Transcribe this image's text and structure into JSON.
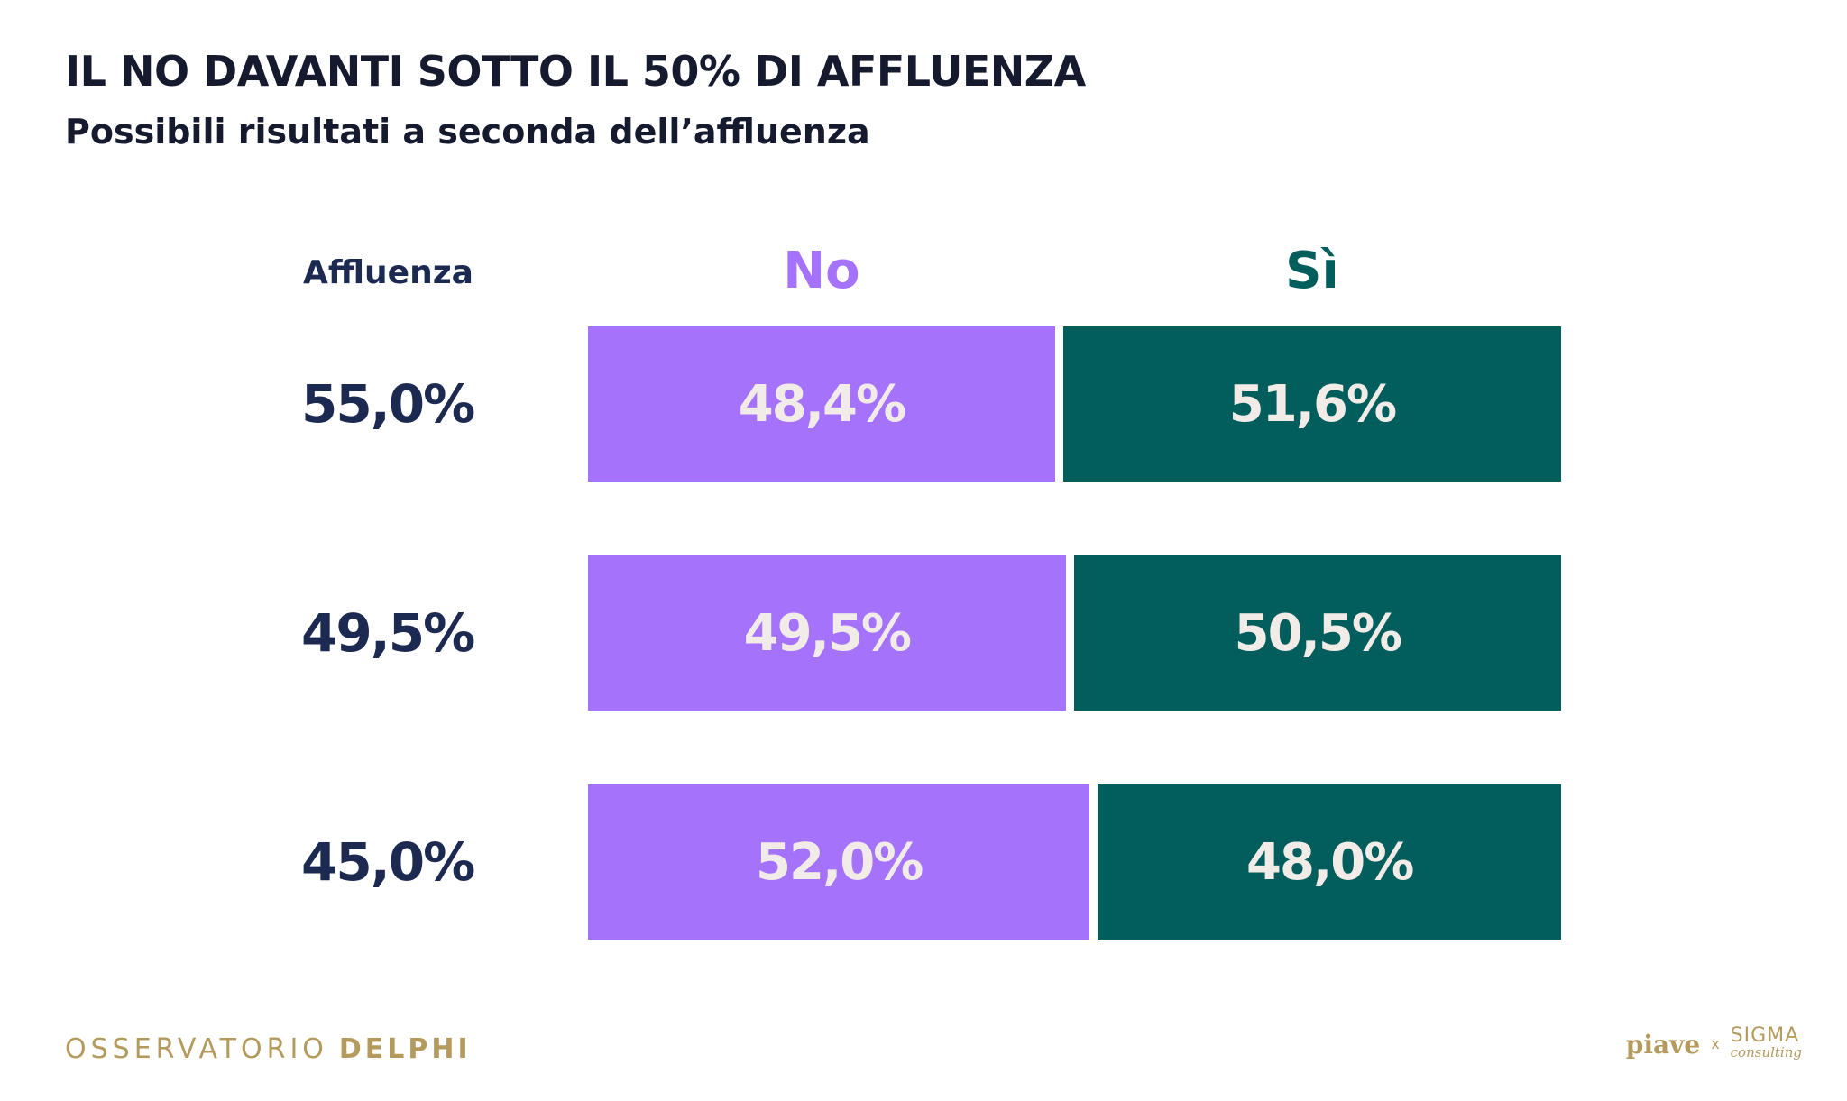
{
  "title": "IL NO DAVANTI SOTTO IL 50% DI AFFLUENZA",
  "subtitle": "Possibili risultati a seconda dell’affluenza",
  "chart_data": {
    "type": "bar",
    "orientation": "horizontal",
    "stacked": true,
    "normalized": true,
    "row_header": "Affluenza",
    "categories": [
      "55,0%",
      "49,5%",
      "45,0%"
    ],
    "series": [
      {
        "name": "No",
        "values": [
          48.4,
          49.5,
          52.0
        ],
        "labels": [
          "48,4%",
          "49,5%",
          "52,0%"
        ],
        "color": "#a472fb"
      },
      {
        "name": "Sì",
        "values": [
          51.6,
          50.5,
          48.0
        ],
        "labels": [
          "51,6%",
          "50,5%",
          "48,0%"
        ],
        "color": "#025e5c"
      }
    ],
    "xlim": [
      0,
      100
    ],
    "grid": false
  },
  "colors": {
    "title": "#151a2e",
    "turnout": "#1c2a52",
    "label_on_bar": "#f2ece8",
    "brand_gold": "#b59a5e"
  },
  "footer": {
    "brand_light": "OSSERVATORIO",
    "brand_bold": "DELPHI",
    "partner_1": "piave",
    "separator": "x",
    "partner_2_top": "SIGMA",
    "partner_2_bottom": "consulting"
  }
}
